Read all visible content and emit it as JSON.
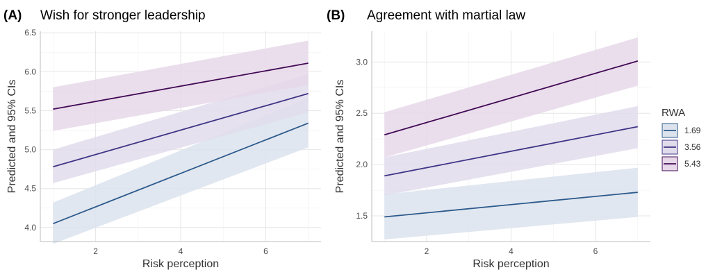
{
  "chart_data": [
    {
      "type": "line",
      "panel": "(A)",
      "title": "Wish for stronger leadership",
      "xlabel": "Risk perception",
      "ylabel": "Predicted and 95% CIs",
      "xlim": [
        0.7,
        7.3
      ],
      "ylim": [
        3.82,
        6.52
      ],
      "xticks": [
        2,
        4,
        6
      ],
      "yticks": [
        4.0,
        4.5,
        5.0,
        5.5,
        6.0,
        6.5
      ],
      "ytick_labels": [
        "4.0",
        "4.5",
        "5.0",
        "5.5",
        "6.0",
        "6.5"
      ],
      "grid": true,
      "x": [
        1,
        7
      ],
      "series": [
        {
          "name": "1.69",
          "color": "#2c5a8c",
          "values": [
            4.05,
            5.34
          ],
          "lower": [
            3.79,
            5.03
          ],
          "upper": [
            4.32,
            5.66
          ]
        },
        {
          "name": "3.56",
          "color": "#3f3586",
          "values": [
            4.78,
            5.72
          ],
          "lower": [
            4.57,
            5.48
          ],
          "upper": [
            5.0,
            5.97
          ]
        },
        {
          "name": "5.43",
          "color": "#430a55",
          "values": [
            5.52,
            6.11
          ],
          "lower": [
            5.24,
            5.83
          ],
          "upper": [
            5.8,
            6.4
          ]
        }
      ]
    },
    {
      "type": "line",
      "panel": "(B)",
      "title": "Agreement with martial law",
      "xlabel": "Risk perception",
      "ylabel": "Predicted and 95% CIs",
      "xlim": [
        0.7,
        7.3
      ],
      "ylim": [
        1.25,
        3.3
      ],
      "xticks": [
        2,
        4,
        6
      ],
      "yticks": [
        1.5,
        2.0,
        2.5,
        3.0
      ],
      "ytick_labels": [
        "1.5",
        "2.0",
        "2.5",
        "3.0"
      ],
      "grid": true,
      "x": [
        1,
        7
      ],
      "series": [
        {
          "name": "1.69",
          "color": "#2c5a8c",
          "values": [
            1.49,
            1.73
          ],
          "lower": [
            1.27,
            1.49
          ],
          "upper": [
            1.71,
            1.97
          ]
        },
        {
          "name": "3.56",
          "color": "#3f3586",
          "values": [
            1.89,
            2.37
          ],
          "lower": [
            1.7,
            2.16
          ],
          "upper": [
            2.07,
            2.57
          ]
        },
        {
          "name": "5.43",
          "color": "#430a55",
          "values": [
            2.29,
            3.01
          ],
          "lower": [
            2.07,
            2.77
          ],
          "upper": [
            2.51,
            3.24
          ]
        }
      ]
    }
  ],
  "legend": {
    "title": "RWA",
    "placement": "right",
    "items": [
      {
        "label": "1.69",
        "color": "#2c5a8c",
        "fill": "#dce3ed"
      },
      {
        "label": "3.56",
        "color": "#3f3586",
        "fill": "#e0dcec"
      },
      {
        "label": "5.43",
        "color": "#430a55",
        "fill": "#e6d8e9"
      }
    ]
  }
}
